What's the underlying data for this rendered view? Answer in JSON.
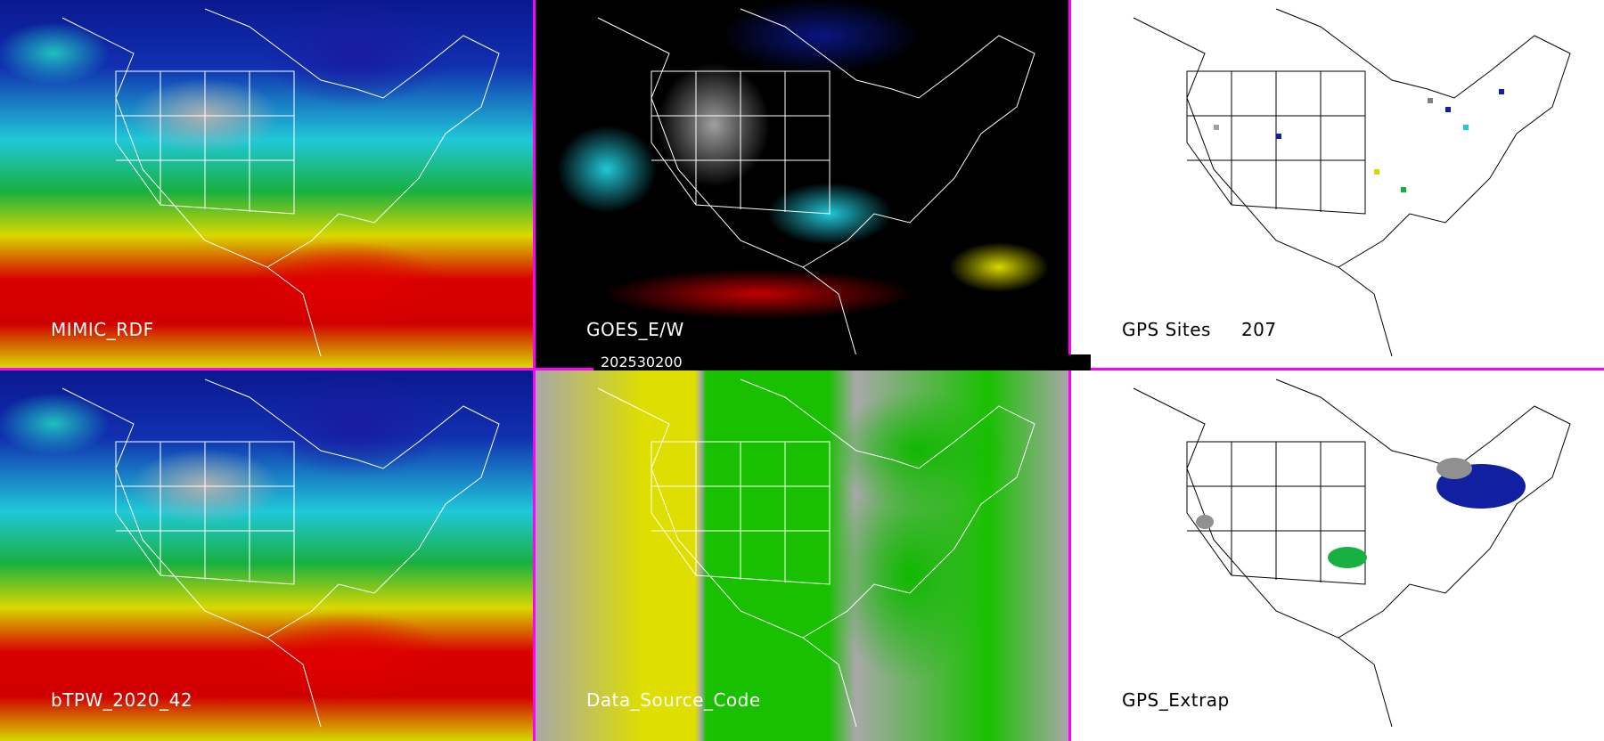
{
  "panels": [
    {
      "label": "MIMIC_RDF"
    },
    {
      "label": "GOES_E/W"
    },
    {
      "label": "GPS Sites",
      "count": "207"
    },
    {
      "label": "bTPW_2020_42"
    },
    {
      "label": "Data_Source_Code"
    },
    {
      "label": "GPS_Extrap"
    }
  ],
  "timestamp": "202530200",
  "colors": {
    "border": "#ff00ff",
    "red": "#d80000",
    "yellow": "#d8d800",
    "green": "#18b040",
    "cyan": "#20c8d8",
    "blue": "#1030b0"
  }
}
